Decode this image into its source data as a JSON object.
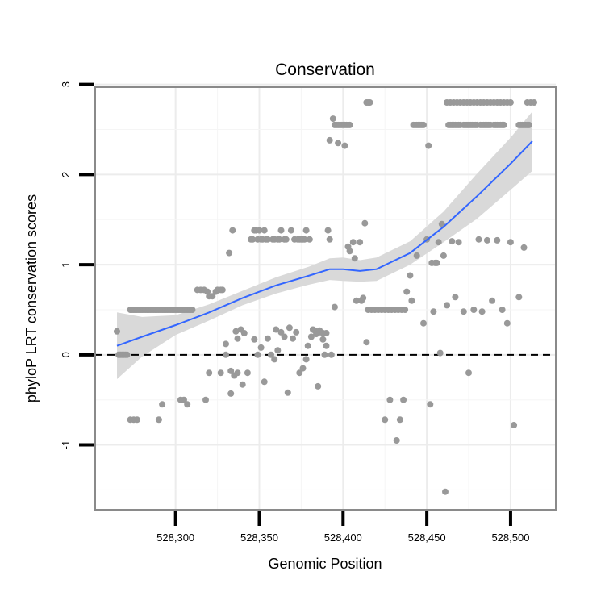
{
  "chart_data": {
    "type": "scatter",
    "title": "Conservation",
    "xlabel": "Genomic Position",
    "ylabel": "phyloP LRT conservation scores",
    "xlim": [
      528252,
      528527
    ],
    "ylim": [
      -1.72,
      2.97
    ],
    "xticks": [
      {
        "value": 528300,
        "label": "528,300"
      },
      {
        "value": 528350,
        "label": "528,350"
      },
      {
        "value": 528400,
        "label": "528,400"
      },
      {
        "value": 528450,
        "label": "528,450"
      },
      {
        "value": 528500,
        "label": "528,500"
      }
    ],
    "yticks": [
      {
        "value": -1,
        "label": "-1"
      },
      {
        "value": 0,
        "label": "0"
      },
      {
        "value": 1,
        "label": "1"
      },
      {
        "value": 2,
        "label": "2"
      },
      {
        "value": 3,
        "label": "3"
      }
    ],
    "reference_line": {
      "y": 0,
      "style": "dashed"
    },
    "point_color": "#999999",
    "smooth_color": "#3366ff",
    "ribbon_color": "#d9d9d9",
    "points": [
      [
        528265,
        0.26
      ],
      [
        528266,
        0.0
      ],
      [
        528267,
        0.0
      ],
      [
        528268,
        0.0
      ],
      [
        528269,
        0.0
      ],
      [
        528270,
        0.0
      ],
      [
        528271,
        0.0
      ],
      [
        528273,
        0.5
      ],
      [
        528274,
        0.5
      ],
      [
        528275,
        0.5
      ],
      [
        528276,
        0.5
      ],
      [
        528277,
        0.5
      ],
      [
        528278,
        0.5
      ],
      [
        528279,
        0.5
      ],
      [
        528280,
        0.5
      ],
      [
        528281,
        0.5
      ],
      [
        528282,
        0.5
      ],
      [
        528283,
        0.5
      ],
      [
        528284,
        0.5
      ],
      [
        528285,
        0.5
      ],
      [
        528286,
        0.5
      ],
      [
        528287,
        0.5
      ],
      [
        528288,
        0.5
      ],
      [
        528289,
        0.5
      ],
      [
        528290,
        0.5
      ],
      [
        528291,
        0.5
      ],
      [
        528292,
        0.5
      ],
      [
        528293,
        0.5
      ],
      [
        528294,
        0.5
      ],
      [
        528295,
        0.5
      ],
      [
        528296,
        0.5
      ],
      [
        528297,
        0.5
      ],
      [
        528298,
        0.5
      ],
      [
        528299,
        0.5
      ],
      [
        528300,
        0.5
      ],
      [
        528301,
        0.5
      ],
      [
        528302,
        0.5
      ],
      [
        528303,
        0.5
      ],
      [
        528304,
        0.5
      ],
      [
        528305,
        0.5
      ],
      [
        528306,
        0.5
      ],
      [
        528307,
        0.5
      ],
      [
        528308,
        0.5
      ],
      [
        528309,
        0.5
      ],
      [
        528310,
        0.5
      ],
      [
        528273,
        -0.72
      ],
      [
        528275,
        -0.72
      ],
      [
        528277,
        -0.72
      ],
      [
        528290,
        -0.72
      ],
      [
        528292,
        -0.55
      ],
      [
        528303,
        -0.5
      ],
      [
        528305,
        -0.5
      ],
      [
        528307,
        -0.55
      ],
      [
        528313,
        0.72
      ],
      [
        528315,
        0.72
      ],
      [
        528317,
        0.72
      ],
      [
        528319,
        0.7
      ],
      [
        528320,
        0.65
      ],
      [
        528322,
        0.65
      ],
      [
        528324,
        0.7
      ],
      [
        528325,
        0.72
      ],
      [
        528327,
        0.72
      ],
      [
        528328,
        0.72
      ],
      [
        528318,
        -0.5
      ],
      [
        528320,
        -0.2
      ],
      [
        528327,
        -0.2
      ],
      [
        528330,
        0.12
      ],
      [
        528330,
        0.0
      ],
      [
        528332,
        1.13
      ],
      [
        528333,
        -0.43
      ],
      [
        528333,
        -0.18
      ],
      [
        528334,
        1.38
      ],
      [
        528335,
        -0.23
      ],
      [
        528336,
        0.26
      ],
      [
        528337,
        -0.2
      ],
      [
        528337,
        0.18
      ],
      [
        528339,
        0.28
      ],
      [
        528340,
        -0.33
      ],
      [
        528341,
        0.24
      ],
      [
        528343,
        -0.2
      ],
      [
        528345,
        1.28
      ],
      [
        528346,
        1.28
      ],
      [
        528347,
        1.38
      ],
      [
        528348,
        1.38
      ],
      [
        528349,
        1.28
      ],
      [
        528350,
        1.38
      ],
      [
        528351,
        1.28
      ],
      [
        528352,
        1.28
      ],
      [
        528353,
        1.38
      ],
      [
        528354,
        1.28
      ],
      [
        528355,
        1.28
      ],
      [
        528347,
        0.17
      ],
      [
        528349,
        0.0
      ],
      [
        528351,
        0.08
      ],
      [
        528353,
        -0.3
      ],
      [
        528355,
        0.18
      ],
      [
        528357,
        0.0
      ],
      [
        528359,
        -0.05
      ],
      [
        528360,
        0.28
      ],
      [
        528361,
        0.05
      ],
      [
        528358,
        1.28
      ],
      [
        528359,
        1.28
      ],
      [
        528361,
        1.28
      ],
      [
        528362,
        1.28
      ],
      [
        528363,
        1.38
      ],
      [
        528365,
        1.28
      ],
      [
        528366,
        1.28
      ],
      [
        528363,
        0.25
      ],
      [
        528365,
        0.2
      ],
      [
        528367,
        -0.42
      ],
      [
        528368,
        0.3
      ],
      [
        528370,
        0.18
      ],
      [
        528372,
        0.25
      ],
      [
        528369,
        1.38
      ],
      [
        528371,
        1.28
      ],
      [
        528373,
        1.28
      ],
      [
        528374,
        1.28
      ],
      [
        528375,
        1.28
      ],
      [
        528376,
        1.28
      ],
      [
        528377,
        1.28
      ],
      [
        528378,
        1.38
      ],
      [
        528380,
        1.28
      ],
      [
        528374,
        -0.2
      ],
      [
        528376,
        -0.15
      ],
      [
        528378,
        -0.05
      ],
      [
        528379,
        0.1
      ],
      [
        528381,
        0.2
      ],
      [
        528382,
        0.28
      ],
      [
        528383,
        0.27
      ],
      [
        528384,
        0.23
      ],
      [
        528385,
        -0.35
      ],
      [
        528386,
        0.27
      ],
      [
        528386,
        0.25
      ],
      [
        528388,
        0.17
      ],
      [
        528388,
        0.24
      ],
      [
        528389,
        0.0
      ],
      [
        528390,
        0.1
      ],
      [
        528390,
        0.24
      ],
      [
        528391,
        1.38
      ],
      [
        528392,
        1.28
      ],
      [
        528393,
        0.0
      ],
      [
        528392,
        2.38
      ],
      [
        528394,
        2.62
      ],
      [
        528395,
        2.55
      ],
      [
        528396,
        2.55
      ],
      [
        528397,
        2.55
      ],
      [
        528398,
        2.55
      ],
      [
        528399,
        2.55
      ],
      [
        528400,
        2.55
      ],
      [
        528401,
        2.55
      ],
      [
        528402,
        2.55
      ],
      [
        528403,
        2.55
      ],
      [
        528404,
        2.55
      ],
      [
        528395,
        0.53
      ],
      [
        528397,
        2.35
      ],
      [
        528401,
        2.32
      ],
      [
        528403,
        1.2
      ],
      [
        528404,
        1.15
      ],
      [
        528406,
        1.25
      ],
      [
        528407,
        1.07
      ],
      [
        528408,
        0.6
      ],
      [
        528410,
        1.25
      ],
      [
        528411,
        0.6
      ],
      [
        528412,
        0.63
      ],
      [
        528413,
        1.46
      ],
      [
        528414,
        2.8
      ],
      [
        528415,
        2.8
      ],
      [
        528416,
        2.8
      ],
      [
        528414,
        0.14
      ],
      [
        528415,
        0.5
      ],
      [
        528417,
        0.5
      ],
      [
        528419,
        0.5
      ],
      [
        528421,
        0.5
      ],
      [
        528423,
        0.5
      ],
      [
        528425,
        0.5
      ],
      [
        528427,
        0.5
      ],
      [
        528429,
        0.5
      ],
      [
        528431,
        0.5
      ],
      [
        528433,
        0.5
      ],
      [
        528435,
        0.5
      ],
      [
        528437,
        0.5
      ],
      [
        528425,
        -0.72
      ],
      [
        528428,
        -0.5
      ],
      [
        528432,
        -0.95
      ],
      [
        528434,
        -0.72
      ],
      [
        528436,
        -0.5
      ],
      [
        528438,
        0.7
      ],
      [
        528440,
        0.88
      ],
      [
        528441,
        0.6
      ],
      [
        528442,
        2.55
      ],
      [
        528443,
        2.55
      ],
      [
        528444,
        2.55
      ],
      [
        528445,
        2.55
      ],
      [
        528446,
        2.55
      ],
      [
        528447,
        2.55
      ],
      [
        528448,
        2.55
      ],
      [
        528444,
        1.1
      ],
      [
        528448,
        0.35
      ],
      [
        528450,
        1.28
      ],
      [
        528451,
        2.32
      ],
      [
        528452,
        -0.55
      ],
      [
        528453,
        1.02
      ],
      [
        528454,
        0.48
      ],
      [
        528455,
        1.02
      ],
      [
        528456,
        1.02
      ],
      [
        528457,
        1.25
      ],
      [
        528458,
        0.02
      ],
      [
        528459,
        1.45
      ],
      [
        528460,
        1.1
      ],
      [
        528461,
        -1.52
      ],
      [
        528462,
        0.55
      ],
      [
        528463,
        2.55
      ],
      [
        528464,
        2.55
      ],
      [
        528465,
        2.55
      ],
      [
        528466,
        2.55
      ],
      [
        528467,
        2.55
      ],
      [
        528468,
        2.55
      ],
      [
        528469,
        2.55
      ],
      [
        528470,
        2.55
      ],
      [
        528472,
        2.55
      ],
      [
        528473,
        2.55
      ],
      [
        528474,
        2.55
      ],
      [
        528475,
        2.55
      ],
      [
        528476,
        2.55
      ],
      [
        528477,
        2.55
      ],
      [
        528478,
        2.55
      ],
      [
        528479,
        2.55
      ],
      [
        528480,
        2.55
      ],
      [
        528482,
        2.55
      ],
      [
        528483,
        2.55
      ],
      [
        528484,
        2.55
      ],
      [
        528485,
        2.55
      ],
      [
        528486,
        2.55
      ],
      [
        528487,
        2.55
      ],
      [
        528488,
        2.55
      ],
      [
        528490,
        2.55
      ],
      [
        528491,
        2.55
      ],
      [
        528492,
        2.55
      ],
      [
        528493,
        2.55
      ],
      [
        528494,
        2.55
      ],
      [
        528495,
        2.55
      ],
      [
        528496,
        2.55
      ],
      [
        528505,
        2.55
      ],
      [
        528506,
        2.55
      ],
      [
        528507,
        2.55
      ],
      [
        528508,
        2.55
      ],
      [
        528509,
        2.55
      ],
      [
        528510,
        2.55
      ],
      [
        528511,
        2.55
      ],
      [
        528462,
        2.8
      ],
      [
        528464,
        2.8
      ],
      [
        528466,
        2.8
      ],
      [
        528468,
        2.8
      ],
      [
        528470,
        2.8
      ],
      [
        528472,
        2.8
      ],
      [
        528474,
        2.8
      ],
      [
        528476,
        2.8
      ],
      [
        528478,
        2.8
      ],
      [
        528480,
        2.8
      ],
      [
        528482,
        2.8
      ],
      [
        528484,
        2.8
      ],
      [
        528486,
        2.8
      ],
      [
        528488,
        2.8
      ],
      [
        528490,
        2.8
      ],
      [
        528492,
        2.8
      ],
      [
        528494,
        2.8
      ],
      [
        528496,
        2.8
      ],
      [
        528498,
        2.8
      ],
      [
        528500,
        2.8
      ],
      [
        528510,
        2.8
      ],
      [
        528512,
        2.8
      ],
      [
        528514,
        2.8
      ],
      [
        528465,
        1.26
      ],
      [
        528467,
        0.64
      ],
      [
        528469,
        1.25
      ],
      [
        528472,
        0.48
      ],
      [
        528475,
        -0.2
      ],
      [
        528478,
        0.5
      ],
      [
        528481,
        1.28
      ],
      [
        528483,
        0.48
      ],
      [
        528486,
        1.27
      ],
      [
        528489,
        0.6
      ],
      [
        528492,
        1.27
      ],
      [
        528495,
        0.5
      ],
      [
        528498,
        0.35
      ],
      [
        528500,
        1.25
      ],
      [
        528502,
        -0.78
      ],
      [
        528505,
        0.64
      ],
      [
        528508,
        1.19
      ]
    ],
    "smooth_fit": {
      "x": [
        528265,
        528280,
        528300,
        528320,
        528340,
        528360,
        528380,
        528392,
        528400,
        528410,
        528420,
        528440,
        528460,
        528480,
        528500,
        528513
      ],
      "y": [
        0.1,
        0.2,
        0.33,
        0.47,
        0.63,
        0.77,
        0.88,
        0.95,
        0.95,
        0.93,
        0.95,
        1.13,
        1.42,
        1.76,
        2.12,
        2.37
      ],
      "lower": [
        -0.27,
        -0.02,
        0.22,
        0.38,
        0.55,
        0.68,
        0.78,
        0.83,
        0.82,
        0.81,
        0.82,
        1.0,
        1.25,
        1.51,
        1.83,
        2.04
      ],
      "upper": [
        0.47,
        0.42,
        0.44,
        0.56,
        0.71,
        0.86,
        0.98,
        1.07,
        1.08,
        1.05,
        1.08,
        1.26,
        1.59,
        2.01,
        2.41,
        2.7
      ]
    }
  }
}
